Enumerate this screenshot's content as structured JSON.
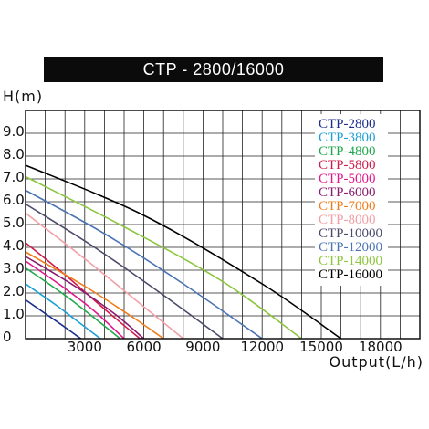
{
  "chart_data": {
    "type": "line",
    "title": "CTP - 2800/16000",
    "xlabel": "Output(L/h)",
    "ylabel": "H(m)",
    "xlim": [
      0,
      20000
    ],
    "ylim": [
      0,
      10
    ],
    "x_ticks": [
      3000,
      6000,
      9000,
      12000,
      15000,
      18000
    ],
    "x_tick_labels": [
      "3000",
      "6000",
      "9000",
      "12000",
      "15000",
      "18000"
    ],
    "y_ticks": [
      0,
      1,
      2,
      3,
      4,
      5,
      6,
      7,
      8,
      9
    ],
    "y_tick_labels": [
      "0",
      "1.0",
      "2.0",
      "3.0",
      "4.0",
      "5.0",
      "6.0",
      "7.0",
      "8.0",
      "9.0"
    ],
    "grid": true,
    "legend_position": "top-right",
    "series": [
      {
        "name": "CTP-2800",
        "color": "#1a2e8c",
        "points": [
          [
            0,
            1.7
          ],
          [
            1000,
            1.1
          ],
          [
            2000,
            0.5
          ],
          [
            2800,
            0
          ]
        ]
      },
      {
        "name": "CTP-3800",
        "color": "#1d9fd6",
        "points": [
          [
            0,
            2.4
          ],
          [
            1500,
            1.5
          ],
          [
            2500,
            0.85
          ],
          [
            3800,
            0
          ]
        ]
      },
      {
        "name": "CTP-4800",
        "color": "#1fa84c",
        "points": [
          [
            0,
            3.1
          ],
          [
            2000,
            1.9
          ],
          [
            3500,
            0.9
          ],
          [
            4800,
            0
          ]
        ]
      },
      {
        "name": "CTP-5800",
        "color": "#d01c4a",
        "points": [
          [
            0,
            4.2
          ],
          [
            2000,
            2.8
          ],
          [
            4000,
            1.3
          ],
          [
            5800,
            0
          ]
        ]
      },
      {
        "name": "CTP-5000",
        "color": "#e0198c",
        "points": [
          [
            0,
            3.4
          ],
          [
            2000,
            2.2
          ],
          [
            3500,
            1.2
          ],
          [
            5000,
            0
          ]
        ]
      },
      {
        "name": "CTP-6000",
        "color": "#8a1a6e",
        "points": [
          [
            0,
            3.6
          ],
          [
            2500,
            2.3
          ],
          [
            4500,
            1.1
          ],
          [
            6000,
            0
          ]
        ]
      },
      {
        "name": "CTP-7000",
        "color": "#ef7d1a",
        "points": [
          [
            0,
            3.8
          ],
          [
            3000,
            2.3
          ],
          [
            5500,
            0.9
          ],
          [
            7000,
            0
          ]
        ]
      },
      {
        "name": "CTP-8000",
        "color": "#f2a0a6",
        "points": [
          [
            0,
            5.5
          ],
          [
            3000,
            3.5
          ],
          [
            6000,
            1.4
          ],
          [
            8000,
            0
          ]
        ]
      },
      {
        "name": "CTP-10000",
        "color": "#4a4a6a",
        "points": [
          [
            0,
            5.9
          ],
          [
            3500,
            4.0
          ],
          [
            7000,
            1.9
          ],
          [
            10000,
            0
          ]
        ]
      },
      {
        "name": "CTP-12000",
        "color": "#4b74b4",
        "points": [
          [
            0,
            6.5
          ],
          [
            4000,
            4.6
          ],
          [
            8000,
            2.4
          ],
          [
            12000,
            0
          ]
        ]
      },
      {
        "name": "CTP-14000",
        "color": "#8cc63f",
        "points": [
          [
            0,
            7.1
          ],
          [
            5000,
            4.9
          ],
          [
            10000,
            2.5
          ],
          [
            14000,
            0
          ]
        ]
      },
      {
        "name": "CTP-16000",
        "color": "#000000",
        "points": [
          [
            0,
            7.6
          ],
          [
            6000,
            5.4
          ],
          [
            12000,
            2.4
          ],
          [
            16000,
            0
          ]
        ]
      }
    ]
  }
}
